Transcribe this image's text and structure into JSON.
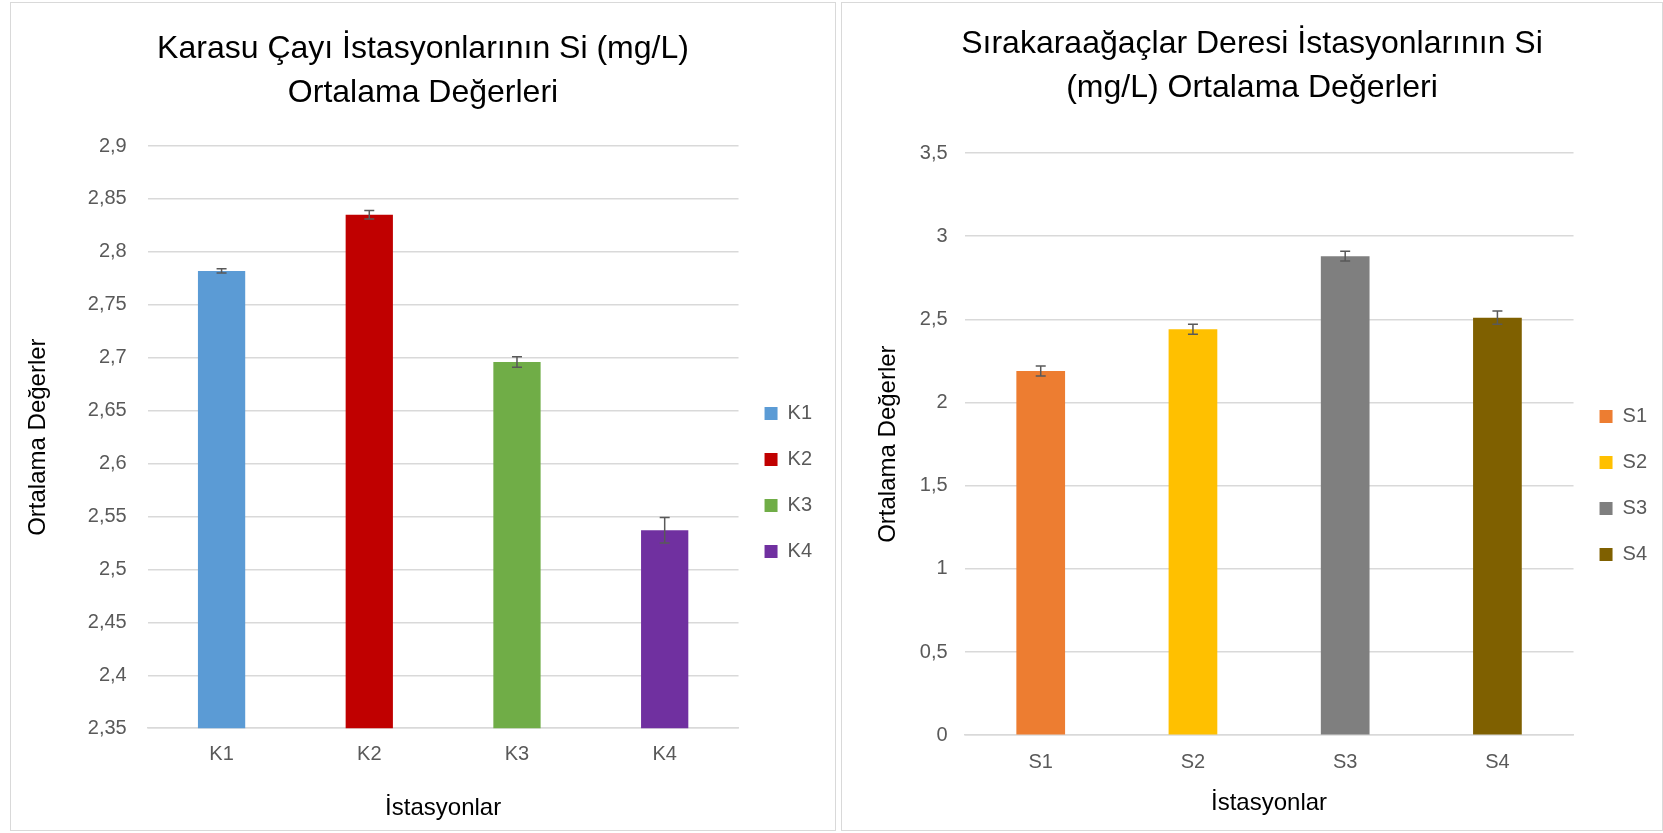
{
  "chart_data": [
    {
      "type": "bar",
      "title": "Karasu Çayı İstasyonlarının Si (mg/L) Ortalama Değerleri",
      "xlabel": "İstasyonlar",
      "ylabel": "Ortalama Değerler",
      "categories": [
        "K1",
        "K2",
        "K3",
        "K4"
      ],
      "series": [
        {
          "name": "K1",
          "color": "#5b9bd5",
          "values": [
            2.782,
            null,
            null,
            null
          ],
          "errors": [
            0.002,
            null,
            null,
            null
          ]
        },
        {
          "name": "K2",
          "color": "#c00000",
          "values": [
            null,
            2.835,
            null,
            null
          ],
          "errors": [
            null,
            0.004,
            null,
            null
          ]
        },
        {
          "name": "K3",
          "color": "#70ad47",
          "values": [
            null,
            null,
            2.696,
            null
          ],
          "errors": [
            null,
            null,
            0.005,
            null
          ]
        },
        {
          "name": "K4",
          "color": "#7030a0",
          "values": [
            null,
            null,
            null,
            2.537
          ],
          "errors": [
            null,
            null,
            null,
            0.012
          ]
        }
      ],
      "ylim": [
        2.35,
        2.9
      ],
      "yticks": [
        {
          "value": 2.35,
          "label": "2,35"
        },
        {
          "value": 2.4,
          "label": "2,4"
        },
        {
          "value": 2.45,
          "label": "2,45"
        },
        {
          "value": 2.5,
          "label": "2,5"
        },
        {
          "value": 2.55,
          "label": "2,55"
        },
        {
          "value": 2.6,
          "label": "2,6"
        },
        {
          "value": 2.65,
          "label": "2,65"
        },
        {
          "value": 2.7,
          "label": "2,7"
        },
        {
          "value": 2.75,
          "label": "2,75"
        },
        {
          "value": 2.8,
          "label": "2,8"
        },
        {
          "value": 2.85,
          "label": "2,85"
        },
        {
          "value": 2.9,
          "label": "2,9"
        }
      ],
      "grid": "y",
      "legend": "right"
    },
    {
      "type": "bar",
      "title": "Sırakaraağaçlar Deresi İstasyonlarının Si (mg/L) Ortalama Değerleri",
      "xlabel": "İstasyonlar",
      "ylabel": "Ortalama Değerler",
      "categories": [
        "S1",
        "S2",
        "S3",
        "S4"
      ],
      "series": [
        {
          "name": "S1",
          "color": "#ed7d31",
          "values": [
            2.19,
            null,
            null,
            null
          ],
          "errors": [
            0.03,
            null,
            null,
            null
          ]
        },
        {
          "name": "S2",
          "color": "#ffc000",
          "values": [
            null,
            2.44,
            null,
            null
          ],
          "errors": [
            null,
            0.03,
            null,
            null
          ]
        },
        {
          "name": "S3",
          "color": "#7f7f7f",
          "values": [
            null,
            null,
            2.88,
            null
          ],
          "errors": [
            null,
            null,
            0.03,
            null
          ]
        },
        {
          "name": "S4",
          "color": "#7f6000",
          "values": [
            null,
            null,
            null,
            2.51
          ],
          "errors": [
            null,
            null,
            null,
            0.04
          ]
        }
      ],
      "ylim": [
        0,
        3.5
      ],
      "yticks": [
        0,
        {
          "value": 0.5,
          "label": "0,5"
        },
        1,
        {
          "value": 1.5,
          "label": "1,5"
        },
        2,
        {
          "value": 2.5,
          "label": "2,5"
        },
        3,
        {
          "value": 3.5,
          "label": "3,5"
        }
      ],
      "grid": "y",
      "legend": "right"
    }
  ]
}
